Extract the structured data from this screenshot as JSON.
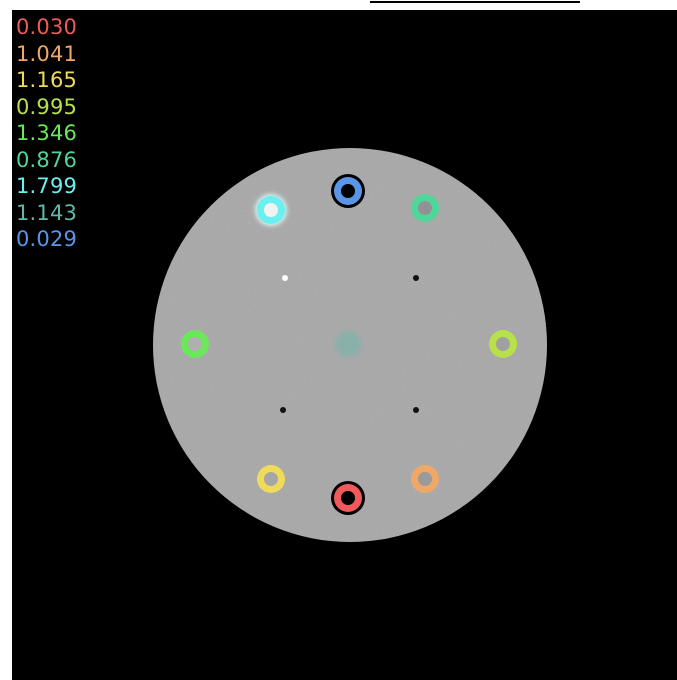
{
  "image": {
    "background_color": "#000000",
    "phantom_color": "#a9a9a9"
  },
  "legend": {
    "items": [
      {
        "value": "0.030",
        "color": "#f05a5a"
      },
      {
        "value": "1.041",
        "color": "#f0a868"
      },
      {
        "value": "1.165",
        "color": "#eedb5a"
      },
      {
        "value": "0.995",
        "color": "#b8e04a"
      },
      {
        "value": "1.346",
        "color": "#6ae85a"
      },
      {
        "value": "0.876",
        "color": "#4fd69a"
      },
      {
        "value": "1.799",
        "color": "#6af0f0"
      },
      {
        "value": "1.143",
        "color": "#62b8a8"
      },
      {
        "value": "0.029",
        "color": "#5a96e8"
      }
    ]
  },
  "inserts": [
    {
      "label": "0.030",
      "color": "#f05a5a",
      "core": "#000000"
    },
    {
      "label": "1.041",
      "color": "#f0a868",
      "core": "#9a9a9a"
    },
    {
      "label": "1.165",
      "color": "#eedb5a",
      "core": "#a6a6a6"
    },
    {
      "label": "0.995",
      "color": "#b8e04a",
      "core": "#a0a0a0"
    },
    {
      "label": "1.346",
      "color": "#6ae85a",
      "core": "#b0b0b0"
    },
    {
      "label": "0.876",
      "color": "#4fd69a",
      "core": "#929292"
    },
    {
      "label": "1.799",
      "color": "#6af0f0",
      "core": "#f2f2f2"
    },
    {
      "label": "1.143",
      "color": "#62b8a8",
      "core": "#7fb2aa"
    },
    {
      "label": "0.029",
      "color": "#5a96e8",
      "core": "#000000"
    }
  ],
  "markers": [
    {
      "color": "#ffffff"
    },
    {
      "color": "#111111"
    },
    {
      "color": "#111111"
    },
    {
      "color": "#111111"
    }
  ]
}
